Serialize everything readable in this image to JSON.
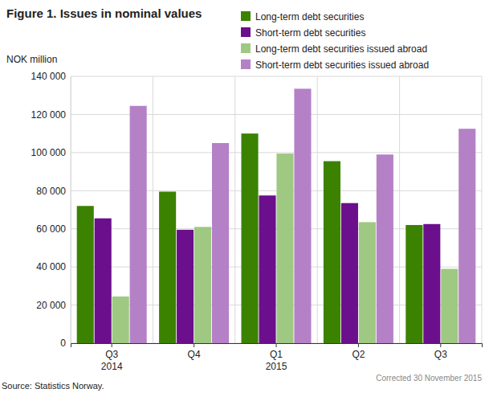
{
  "chart_data": {
    "type": "bar",
    "title": "Figure 1. Issues in nominal values",
    "y_label": "NOK million",
    "source": "Source: Statistics Norway.",
    "note": "Corrected 30 November 2015",
    "categories": [
      "Q3\n2014",
      "Q4",
      "Q1\n2015",
      "Q2",
      "Q3"
    ],
    "series": [
      {
        "name": "Long-term debt securities",
        "color": "#3b8200",
        "values": [
          72000,
          79500,
          110000,
          95500,
          62000
        ]
      },
      {
        "name": "Short-term debt securities",
        "color": "#6b0f8c",
        "values": [
          65500,
          59500,
          77500,
          73500,
          62500
        ]
      },
      {
        "name": "Long-term debt securities issued abroad",
        "color": "#9fc882",
        "values": [
          24500,
          61000,
          99500,
          63500,
          39000
        ]
      },
      {
        "name": "Short-term debt securities issued abroad",
        "color": "#b481c6",
        "values": [
          124500,
          105000,
          133500,
          99000,
          112500
        ]
      }
    ],
    "ylim": [
      0,
      140000
    ],
    "yticks": [
      0,
      {
        "value": 20000,
        "label": "20 000"
      },
      {
        "value": 40000,
        "label": "40 000"
      },
      {
        "value": 60000,
        "label": "60 000"
      },
      {
        "value": 80000,
        "label": "80 000"
      },
      {
        "value": 100000,
        "label": "100 000"
      },
      {
        "value": 120000,
        "label": "120 000"
      },
      {
        "value": 140000,
        "label": "140 000"
      }
    ],
    "grid": true,
    "legend": "top-right"
  }
}
